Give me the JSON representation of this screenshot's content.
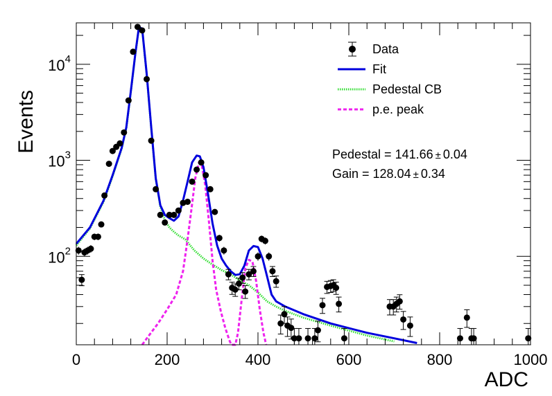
{
  "chart_data": {
    "type": "scatter",
    "xlabel": "ADC",
    "ylabel": "Events",
    "xlim": [
      0,
      1000
    ],
    "ylim": [
      12,
      27000
    ],
    "y_scale": "log",
    "grid": false,
    "legend_position": "top-right",
    "x_ticks": [
      0,
      200,
      400,
      600,
      800,
      1000
    ],
    "x_tick_labels": [
      "0",
      "200",
      "400",
      "600",
      "800",
      "1000"
    ],
    "y_ticks": [
      100,
      1000,
      10000
    ],
    "y_tick_labels": [
      {
        "base": "10",
        "exp": "2"
      },
      {
        "base": "10",
        "exp": "3"
      },
      {
        "base": "10",
        "exp": "4"
      }
    ],
    "legend": [
      {
        "label": "Data",
        "style": "marker",
        "color": "#000000"
      },
      {
        "label": "Fit",
        "style": "solid",
        "color": "#0000dd"
      },
      {
        "label": "Pedestal CB",
        "style": "dotted",
        "color": "#33dd33"
      },
      {
        "label": "p.e. peak",
        "style": "dashed",
        "color": "#ee22ee"
      }
    ],
    "annotations": [
      {
        "label": "Pedestal = 141.66",
        "pm": "±",
        "err": "0.04"
      },
      {
        "label": "Gain = 128.04",
        "pm": "±",
        "err": "0.34"
      }
    ],
    "series": [
      {
        "name": "Data",
        "kind": "points_with_errors",
        "color": "#000000",
        "points": [
          [
            5,
            115
          ],
          [
            12,
            57
          ],
          [
            18,
            110
          ],
          [
            25,
            115
          ],
          [
            32,
            120
          ],
          [
            40,
            160
          ],
          [
            48,
            160
          ],
          [
            55,
            215
          ],
          [
            62,
            430
          ],
          [
            72,
            920
          ],
          [
            80,
            1250
          ],
          [
            88,
            1380
          ],
          [
            96,
            1500
          ],
          [
            105,
            1950
          ],
          [
            115,
            4200
          ],
          [
            125,
            13500
          ],
          [
            135,
            24500
          ],
          [
            145,
            22500
          ],
          [
            155,
            7000
          ],
          [
            165,
            1600
          ],
          [
            175,
            500
          ],
          [
            185,
            270
          ],
          [
            195,
            225
          ],
          [
            205,
            270
          ],
          [
            215,
            270
          ],
          [
            225,
            300
          ],
          [
            235,
            360
          ],
          [
            245,
            370
          ],
          [
            255,
            600
          ],
          [
            265,
            800
          ],
          [
            275,
            950
          ],
          [
            285,
            700
          ],
          [
            295,
            500
          ],
          [
            305,
            290
          ],
          [
            315,
            155
          ],
          [
            325,
            115
          ],
          [
            335,
            65
          ],
          [
            343,
            47
          ],
          [
            350,
            45
          ],
          [
            358,
            52
          ],
          [
            366,
            60
          ],
          [
            372,
            43
          ],
          [
            380,
            65
          ],
          [
            390,
            70
          ],
          [
            400,
            100
          ],
          [
            408,
            152
          ],
          [
            416,
            145
          ],
          [
            424,
            100
          ],
          [
            432,
            70
          ],
          [
            440,
            55
          ],
          [
            450,
            20
          ],
          [
            458,
            25
          ],
          [
            465,
            19
          ],
          [
            473,
            18
          ],
          [
            480,
            14
          ],
          [
            490,
            14
          ],
          [
            510,
            14
          ],
          [
            525,
            14
          ],
          [
            532,
            17
          ],
          [
            542,
            31
          ],
          [
            552,
            48
          ],
          [
            560,
            49
          ],
          [
            566,
            50
          ],
          [
            572,
            47
          ],
          [
            578,
            32
          ],
          [
            590,
            14
          ],
          [
            690,
            30
          ],
          [
            698,
            30
          ],
          [
            705,
            32
          ],
          [
            712,
            34
          ],
          [
            720,
            22
          ],
          [
            735,
            19
          ],
          [
            845,
            14
          ],
          [
            860,
            23
          ],
          [
            870,
            14
          ],
          [
            875,
            14
          ],
          [
            995,
            14
          ]
        ]
      },
      {
        "name": "Fit",
        "kind": "line",
        "color": "#0000dd",
        "points": [
          [
            0,
            135
          ],
          [
            30,
            200
          ],
          [
            60,
            380
          ],
          [
            80,
            700
          ],
          [
            100,
            1350
          ],
          [
            110,
            2200
          ],
          [
            120,
            5200
          ],
          [
            130,
            13000
          ],
          [
            138,
            24500
          ],
          [
            145,
            23500
          ],
          [
            155,
            8000
          ],
          [
            165,
            2200
          ],
          [
            175,
            650
          ],
          [
            185,
            340
          ],
          [
            195,
            270
          ],
          [
            205,
            250
          ],
          [
            215,
            235
          ],
          [
            225,
            260
          ],
          [
            235,
            380
          ],
          [
            245,
            600
          ],
          [
            255,
            950
          ],
          [
            265,
            1120
          ],
          [
            272,
            1100
          ],
          [
            280,
            850
          ],
          [
            290,
            450
          ],
          [
            300,
            220
          ],
          [
            310,
            130
          ],
          [
            320,
            95
          ],
          [
            330,
            80
          ],
          [
            340,
            70
          ],
          [
            350,
            64
          ],
          [
            360,
            65
          ],
          [
            370,
            80
          ],
          [
            380,
            115
          ],
          [
            390,
            128
          ],
          [
            400,
            125
          ],
          [
            410,
            95
          ],
          [
            420,
            62
          ],
          [
            430,
            40
          ],
          [
            440,
            34
          ],
          [
            460,
            30
          ],
          [
            500,
            25
          ],
          [
            560,
            20
          ],
          [
            640,
            16
          ],
          [
            700,
            14
          ],
          [
            750,
            12.5
          ]
        ]
      },
      {
        "name": "Pedestal CB",
        "kind": "line",
        "color": "#33dd33",
        "points": [
          [
            0,
            130
          ],
          [
            30,
            195
          ],
          [
            60,
            370
          ],
          [
            80,
            680
          ],
          [
            100,
            1330
          ],
          [
            110,
            2150
          ],
          [
            120,
            5100
          ],
          [
            130,
            12800
          ],
          [
            138,
            24200
          ],
          [
            145,
            23000
          ],
          [
            155,
            7900
          ],
          [
            165,
            2150
          ],
          [
            175,
            640
          ],
          [
            185,
            330
          ],
          [
            195,
            240
          ],
          [
            205,
            200
          ],
          [
            215,
            180
          ],
          [
            225,
            165
          ],
          [
            240,
            150
          ],
          [
            260,
            115
          ],
          [
            280,
            95
          ],
          [
            300,
            82
          ],
          [
            320,
            72
          ],
          [
            340,
            65
          ],
          [
            360,
            56
          ],
          [
            380,
            50
          ],
          [
            400,
            42
          ],
          [
            420,
            34
          ],
          [
            440,
            30
          ],
          [
            460,
            27
          ],
          [
            500,
            23
          ],
          [
            560,
            19
          ],
          [
            640,
            15
          ],
          [
            700,
            13
          ]
        ]
      },
      {
        "name": "p.e. peak",
        "kind": "line",
        "color": "#ee22ee",
        "points": [
          [
            145,
            12
          ],
          [
            160,
            15
          ],
          [
            180,
            20
          ],
          [
            200,
            28
          ],
          [
            220,
            40
          ],
          [
            235,
            70
          ],
          [
            245,
            150
          ],
          [
            255,
            350
          ],
          [
            262,
            650
          ],
          [
            270,
            950
          ],
          [
            276,
            900
          ],
          [
            284,
            550
          ],
          [
            292,
            230
          ],
          [
            300,
            90
          ],
          [
            308,
            45
          ],
          [
            318,
            27
          ],
          [
            328,
            18
          ],
          [
            338,
            13
          ],
          [
            342,
            12
          ],
          [
            350,
            12
          ],
          [
            356,
            16
          ],
          [
            364,
            35
          ],
          [
            372,
            75
          ],
          [
            380,
            92
          ],
          [
            388,
            88
          ],
          [
            396,
            55
          ],
          [
            404,
            28
          ],
          [
            412,
            16
          ],
          [
            418,
            12
          ]
        ]
      }
    ]
  }
}
